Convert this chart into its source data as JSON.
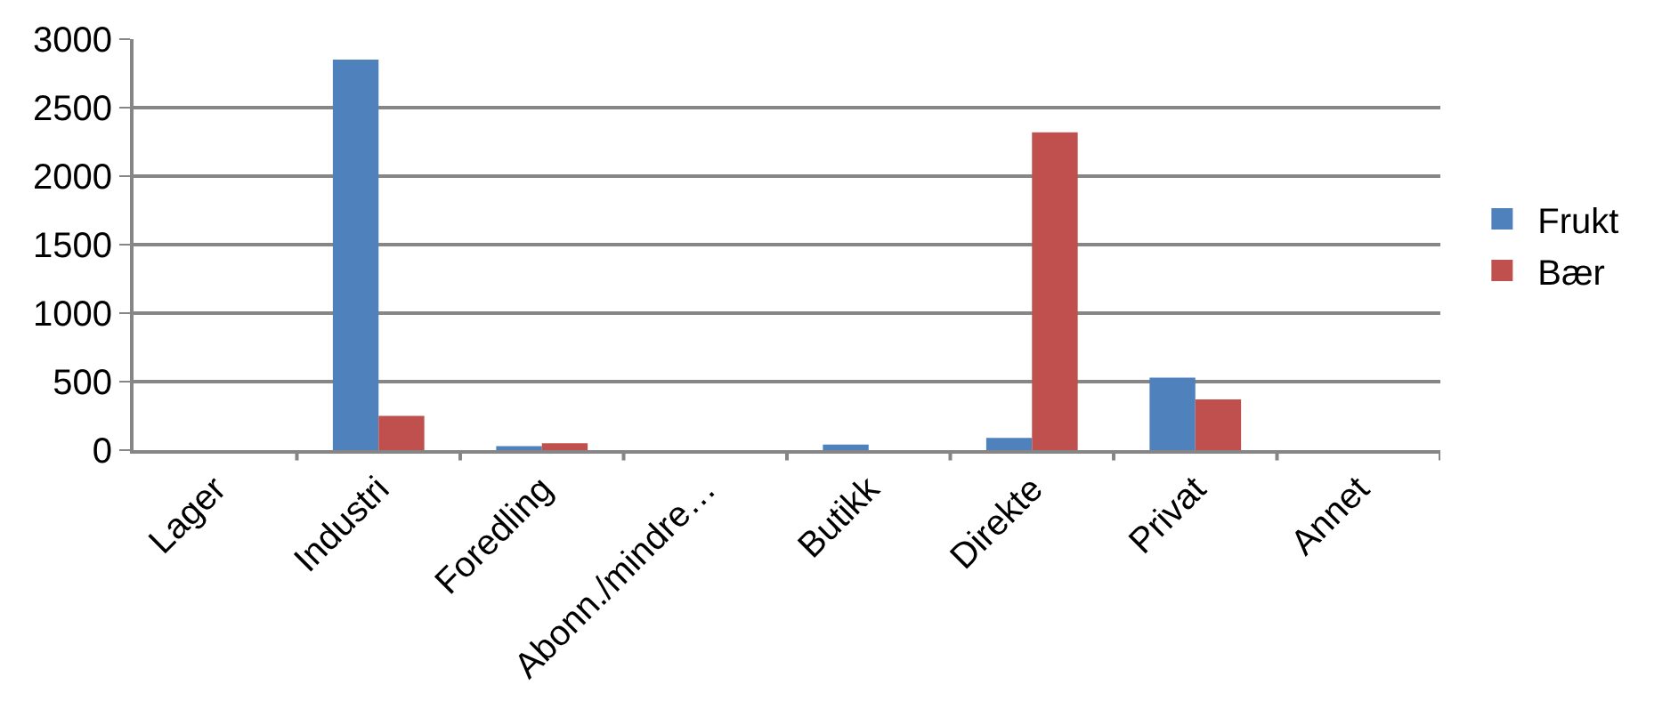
{
  "chart_data": {
    "type": "bar",
    "categories": [
      "Lager",
      "Industri",
      "Foredling",
      "Abonn./mindre…",
      "Butikk",
      "Direkte",
      "Privat",
      "Annet"
    ],
    "series": [
      {
        "name": "Frukt",
        "color": "#4f81bd",
        "values": [
          0,
          2850,
          30,
          0,
          40,
          90,
          530,
          0
        ]
      },
      {
        "name": "Bær",
        "color": "#c0504d",
        "values": [
          0,
          250,
          50,
          0,
          0,
          2320,
          370,
          0
        ]
      }
    ],
    "ylim": [
      0,
      3000
    ],
    "yticks": [
      0,
      500,
      1000,
      1500,
      2000,
      2500,
      3000
    ],
    "grid": "y",
    "legend": "right"
  }
}
